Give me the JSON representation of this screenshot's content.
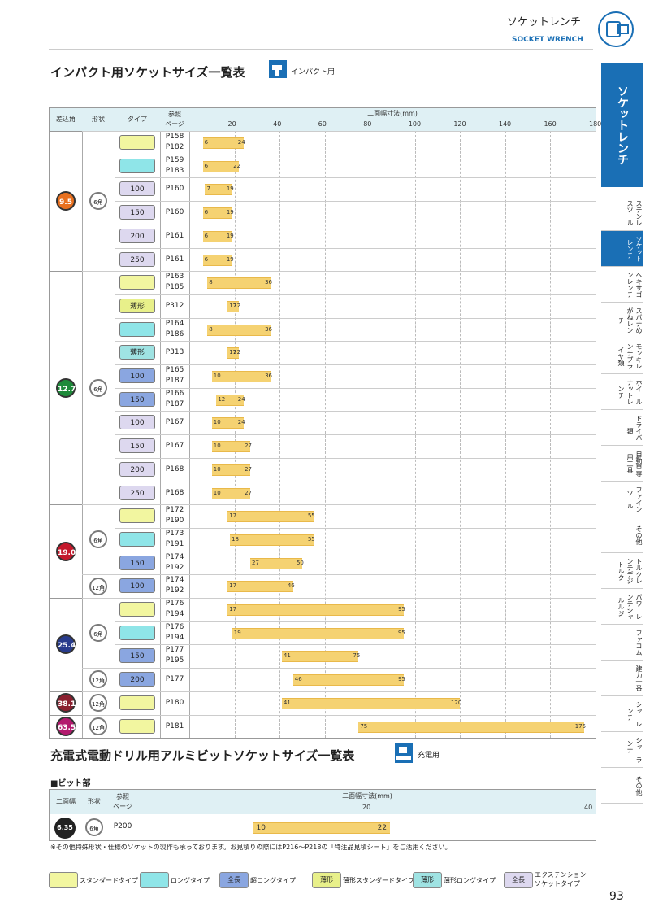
{
  "header": {
    "title_jp": "ソケットレンチ",
    "title_en": "SOCKET WRENCH"
  },
  "section1": {
    "title": "インパクト用ソケットサイズ一覧表",
    "icon_label": "インパクト用"
  },
  "table1": {
    "headers": {
      "drive": "差込角",
      "shape": "形状",
      "type": "タイプ",
      "ref": "参照\nページ",
      "width": "二面幅寸法(mm)"
    },
    "axis": [
      "20",
      "40",
      "60",
      "80",
      "100",
      "120",
      "140",
      "160",
      "180"
    ],
    "rows": [
      {
        "ref": "P158\nP182",
        "type": "std",
        "label": "",
        "min": "6",
        "max": "24"
      },
      {
        "ref": "P159\nP183",
        "type": "long",
        "label": "",
        "min": "6",
        "max": "22"
      },
      {
        "ref": "P160",
        "type": "ext",
        "label": "100",
        "min": "7",
        "max": "19"
      },
      {
        "ref": "P160",
        "type": "ext",
        "label": "150",
        "min": "6",
        "max": "19"
      },
      {
        "ref": "P161",
        "type": "ext",
        "label": "200",
        "min": "6",
        "max": "19"
      },
      {
        "ref": "P161",
        "type": "ext",
        "label": "250",
        "min": "6",
        "max": "19"
      },
      {
        "ref": "P163\nP185",
        "type": "std",
        "label": "",
        "min": "8",
        "max": "36"
      },
      {
        "ref": "P312",
        "type": "thin",
        "label": "薄形",
        "min": "17",
        "max": "22"
      },
      {
        "ref": "P164\nP186",
        "type": "long",
        "label": "",
        "min": "8",
        "max": "36"
      },
      {
        "ref": "P313",
        "type": "thinlong",
        "label": "薄形",
        "min": "17",
        "max": "22"
      },
      {
        "ref": "P165\nP187",
        "type": "extra",
        "label": "100",
        "min": "10",
        "max": "36"
      },
      {
        "ref": "P166\nP187",
        "type": "extra",
        "label": "150",
        "min": "12",
        "max": "24"
      },
      {
        "ref": "P167",
        "type": "ext",
        "label": "100",
        "min": "10",
        "max": "24"
      },
      {
        "ref": "P167",
        "type": "ext",
        "label": "150",
        "min": "10",
        "max": "27"
      },
      {
        "ref": "P168",
        "type": "ext",
        "label": "200",
        "min": "10",
        "max": "27"
      },
      {
        "ref": "P168",
        "type": "ext",
        "label": "250",
        "min": "10",
        "max": "27"
      },
      {
        "ref": "P172\nP190",
        "type": "std",
        "label": "",
        "min": "17",
        "max": "55"
      },
      {
        "ref": "P173\nP191",
        "type": "long",
        "label": "",
        "min": "18",
        "max": "55"
      },
      {
        "ref": "P174\nP192",
        "type": "extra",
        "label": "150",
        "min": "27",
        "max": "50"
      },
      {
        "ref": "P174\nP192",
        "type": "extra",
        "label": "100",
        "min": "17",
        "max": "46"
      },
      {
        "ref": "P176\nP194",
        "type": "std",
        "label": "",
        "min": "17",
        "max": "95"
      },
      {
        "ref": "P176\nP194",
        "type": "long",
        "label": "",
        "min": "19",
        "max": "95"
      },
      {
        "ref": "P177\nP195",
        "type": "extra",
        "label": "150",
        "min": "41",
        "max": "75"
      },
      {
        "ref": "P177",
        "type": "extra",
        "label": "200",
        "min": "46",
        "max": "95"
      },
      {
        "ref": "P180",
        "type": "std",
        "label": "",
        "min": "41",
        "max": "120"
      },
      {
        "ref": "P181",
        "type": "std",
        "label": "",
        "min": "75",
        "max": "175"
      }
    ],
    "drives": [
      "9.5",
      "12.7",
      "19.0",
      "25.4",
      "38.1",
      "63.5"
    ],
    "shapes": [
      "6角",
      "6角",
      "6角",
      "12角",
      "6角",
      "12角",
      "12角",
      "12角"
    ]
  },
  "section2": {
    "title": "充電式電動ドリル用アルミビットソケットサイズ一覧表",
    "icon_label": "充電用"
  },
  "bit": {
    "heading": "■ビット部",
    "headers": {
      "width": "二面幅",
      "shape": "形状",
      "ref": "参照\nページ",
      "range": "二面幅寸法(mm)"
    },
    "axis": [
      "20",
      "40"
    ],
    "size": "6.35",
    "shape": "6角",
    "ref": "P200",
    "min": "10",
    "max": "22"
  },
  "note": "※その他特殊形状・仕様のソケットの製作も承っております。お見積りの際にはP216〜P218の「特注品見積シート」をご活用ください。",
  "legend": [
    {
      "box": "",
      "label": "スタンダードタイプ"
    },
    {
      "box": "",
      "label": "ロングタイプ"
    },
    {
      "box": "全長",
      "label": "超ロングタイプ"
    },
    {
      "box": "薄形",
      "label": "薄形スタンダードタイプ"
    },
    {
      "box": "薄形",
      "label": "薄形ロングタイプ"
    },
    {
      "box": "全長",
      "label": "エクステンション\nソケットタイプ"
    }
  ],
  "side_nav": [
    {
      "label": "ソケットレンチ"
    },
    {
      "label": "ステンレスツール"
    },
    {
      "label": "ソケットレンチ"
    },
    {
      "label": "ヘキサゴンレンチ"
    },
    {
      "label": "スパナめがねレンチ"
    },
    {
      "label": "モンキレンチプライヤ類"
    },
    {
      "label": "ホイールナットレンチ"
    },
    {
      "label": "ドライバー類"
    },
    {
      "label": "自動車専用工具"
    },
    {
      "label": "ファインツール"
    },
    {
      "label": "その他"
    },
    {
      "label": "トルクレンチデジトルク"
    },
    {
      "label": "パワーレンチシャルルジ"
    },
    {
      "label": "ファコム"
    },
    {
      "label": "建力一番"
    },
    {
      "label": "シャーレンチ"
    },
    {
      "label": "シャーランナー"
    },
    {
      "label": "その他"
    }
  ],
  "page_number": "93",
  "colors": {
    "accent": "#1a6fb5",
    "bar": "#f5d272"
  }
}
